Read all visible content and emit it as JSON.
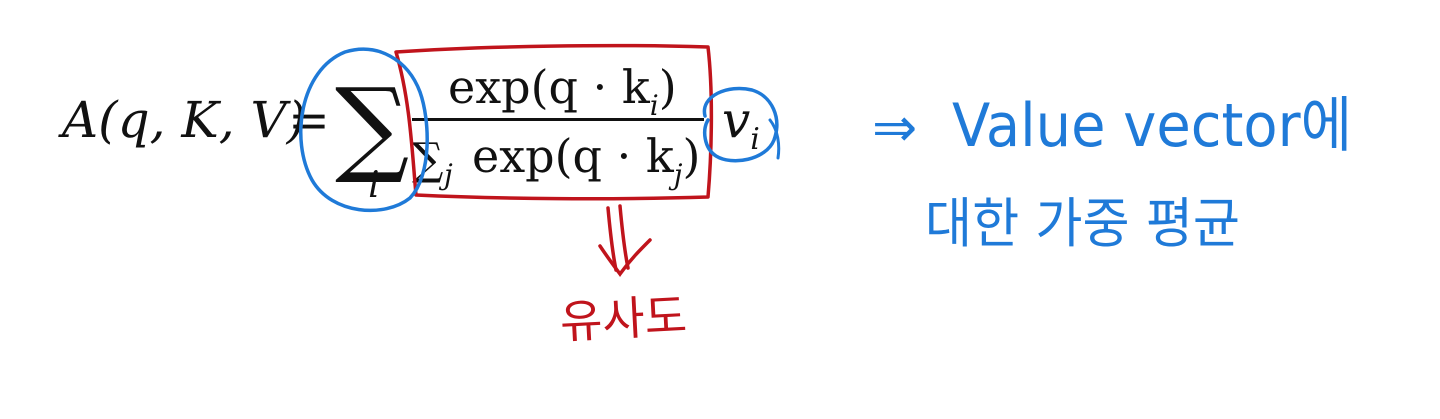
{
  "formula": {
    "lhs": "A(q, K, V)",
    "equals": "=",
    "sum_symbol": "∑",
    "sum_index": "i",
    "numerator": "exp(q · k",
    "numerator_sub": "i",
    "numerator_close": ")",
    "denominator_sum": "∑",
    "denominator_sum_index": "j",
    "denominator": "exp(q · k",
    "denominator_sub": "j",
    "denominator_close": ")",
    "value": "v",
    "value_sub": "i"
  },
  "annotations": {
    "similarity_note": "유사도",
    "arrow_symbol": "⇒",
    "weighted_average_line1": "Value vector에",
    "weighted_average_line2": "대한 가중 평균"
  },
  "colors": {
    "ink": "#111111",
    "red": "#c0141c",
    "blue": "#1f7ad8"
  }
}
